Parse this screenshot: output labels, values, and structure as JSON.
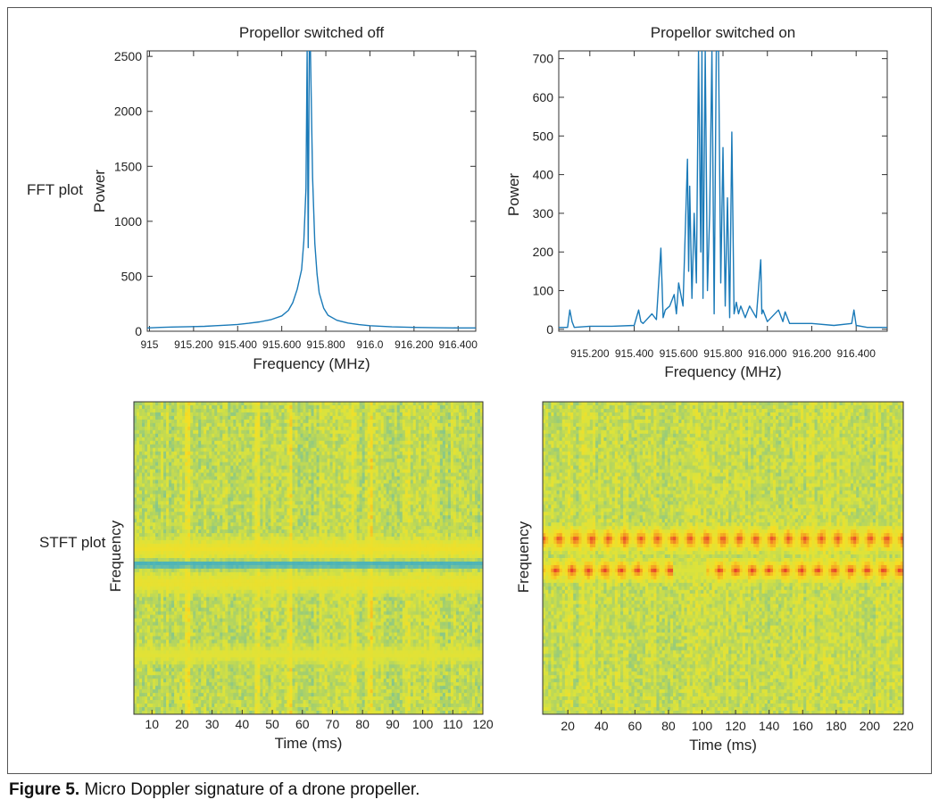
{
  "row_labels": {
    "fft": "FFT plot",
    "stft": "STFT plot"
  },
  "caption": {
    "label": "Figure 5.",
    "text": "Micro Doppler signature of a drone propeller."
  },
  "colors": {
    "line": "#1a7ab8",
    "axis": "#333333"
  },
  "chart_data": [
    {
      "id": "fft-off",
      "type": "line",
      "title": "Propellor switched off",
      "xlabel": "Frequency (MHz)",
      "ylabel": "Power",
      "xlim": [
        914.99,
        916.48
      ],
      "ylim": [
        0,
        2550
      ],
      "xticks": [
        915,
        915.2,
        915.4,
        915.6,
        915.8,
        916.0,
        916.2,
        916.4
      ],
      "xtick_labels": [
        "915",
        "915.200",
        "915.400",
        "915.600",
        "915.800",
        "916.0",
        "916.200",
        "916.400"
      ],
      "yticks": [
        0,
        500,
        1000,
        1500,
        2000,
        2500
      ],
      "ytick_labels": [
        "0",
        "500",
        "1000",
        "1500",
        "2000",
        "2500"
      ],
      "grid": false,
      "x": [
        914.99,
        915.05,
        915.1,
        915.15,
        915.2,
        915.25,
        915.3,
        915.35,
        915.4,
        915.45,
        915.5,
        915.55,
        915.6,
        915.63,
        915.65,
        915.67,
        915.69,
        915.7,
        915.71,
        915.715,
        915.72,
        915.725,
        915.73,
        915.74,
        915.75,
        915.76,
        915.77,
        915.79,
        915.81,
        915.85,
        915.9,
        915.95,
        916.0,
        916.1,
        916.2,
        916.3,
        916.4,
        916.48
      ],
      "y": [
        30,
        35,
        38,
        40,
        42,
        45,
        50,
        55,
        62,
        72,
        85,
        105,
        140,
        190,
        260,
        380,
        560,
        820,
        1300,
        2550,
        760,
        2550,
        2550,
        1400,
        800,
        520,
        350,
        210,
        145,
        100,
        75,
        60,
        50,
        40,
        35,
        32,
        30,
        30
      ]
    },
    {
      "id": "fft-on",
      "type": "line",
      "title": "Propellor switched on",
      "xlabel": "Frequency (MHz)",
      "ylabel": "Power",
      "xlim": [
        915.06,
        916.54
      ],
      "ylim": [
        -5,
        720
      ],
      "xticks": [
        915.2,
        915.4,
        915.6,
        915.8,
        916.0,
        916.2,
        916.4
      ],
      "xtick_labels": [
        "915.200",
        "915.400",
        "915.600",
        "915.800",
        "916.000",
        "916.200",
        "916.400"
      ],
      "yticks": [
        0,
        100,
        200,
        300,
        400,
        500,
        600,
        700
      ],
      "ytick_labels": [
        "0",
        "100",
        "200",
        "300",
        "400",
        "500",
        "600",
        "700"
      ],
      "grid": false,
      "x": [
        915.06,
        915.1,
        915.11,
        915.12,
        915.13,
        915.2,
        915.3,
        915.4,
        915.42,
        915.43,
        915.44,
        915.48,
        915.5,
        915.52,
        915.53,
        915.54,
        915.56,
        915.58,
        915.59,
        915.6,
        915.62,
        915.64,
        915.645,
        915.65,
        915.66,
        915.67,
        915.68,
        915.69,
        915.7,
        915.705,
        915.71,
        915.72,
        915.73,
        915.74,
        915.75,
        915.76,
        915.77,
        915.78,
        915.79,
        915.8,
        915.81,
        915.82,
        915.83,
        915.84,
        915.85,
        915.86,
        915.87,
        915.88,
        915.9,
        915.92,
        915.95,
        915.97,
        915.975,
        915.98,
        916.0,
        916.05,
        916.07,
        916.08,
        916.1,
        916.2,
        916.3,
        916.38,
        916.39,
        916.4,
        916.45,
        916.54
      ],
      "y": [
        5,
        5,
        50,
        20,
        5,
        8,
        8,
        10,
        50,
        20,
        15,
        40,
        25,
        210,
        30,
        50,
        60,
        90,
        40,
        120,
        60,
        440,
        150,
        370,
        80,
        300,
        120,
        720,
        200,
        720,
        80,
        720,
        100,
        300,
        720,
        40,
        720,
        720,
        120,
        470,
        60,
        340,
        30,
        510,
        40,
        70,
        40,
        60,
        30,
        60,
        30,
        180,
        40,
        50,
        20,
        50,
        20,
        45,
        15,
        15,
        10,
        15,
        50,
        10,
        5,
        5
      ]
    },
    {
      "id": "stft-off",
      "type": "heatmap",
      "xlabel": "Time (ms)",
      "ylabel": "Frequency",
      "xlim": [
        4,
        120
      ],
      "xticks": [
        10,
        20,
        30,
        40,
        50,
        60,
        70,
        80,
        90,
        100,
        110,
        120
      ],
      "xtick_labels": [
        "10",
        "20",
        "30",
        "40",
        "50",
        "60",
        "70",
        "80",
        "90",
        "100",
        "110",
        "120"
      ],
      "colormap": [
        "#2ea7c4",
        "#61bcae",
        "#a5cf6d",
        "#dbe33c",
        "#f6de24",
        "#f4a123",
        "#e4322e"
      ],
      "bands": [
        {
          "freq_center": 0.52,
          "width": 0.022,
          "level": 0.02
        },
        {
          "freq_center": 0.47,
          "width": 0.05,
          "level": 0.62
        },
        {
          "freq_center": 0.58,
          "width": 0.05,
          "level": 0.6
        },
        {
          "freq_center": 0.81,
          "width": 0.04,
          "level": 0.55
        }
      ],
      "background_level": 0.42,
      "bright_columns_ms": [
        22,
        45,
        56,
        77,
        83,
        95,
        103
      ]
    },
    {
      "id": "stft-on",
      "type": "heatmap",
      "xlabel": "Time (ms)",
      "ylabel": "Frequency",
      "xlim": [
        5,
        220
      ],
      "xticks": [
        20,
        40,
        60,
        80,
        100,
        120,
        140,
        160,
        180,
        200,
        220
      ],
      "xtick_labels": [
        "20",
        "40",
        "60",
        "80",
        "100",
        "120",
        "140",
        "160",
        "180",
        "200",
        "220"
      ],
      "colormap": [
        "#2ea7c4",
        "#61bcae",
        "#a5cf6d",
        "#dbe33c",
        "#f6de24",
        "#f4a123",
        "#e4322e"
      ],
      "bands": [
        {
          "freq_center": 0.44,
          "width": 0.05,
          "level": 0.95
        },
        {
          "freq_center": 0.54,
          "width": 0.045,
          "level": 0.95
        }
      ],
      "background_level": 0.45,
      "band_gap_ms": [
        [
          83,
          92
        ],
        [
          93,
          103
        ]
      ]
    }
  ]
}
